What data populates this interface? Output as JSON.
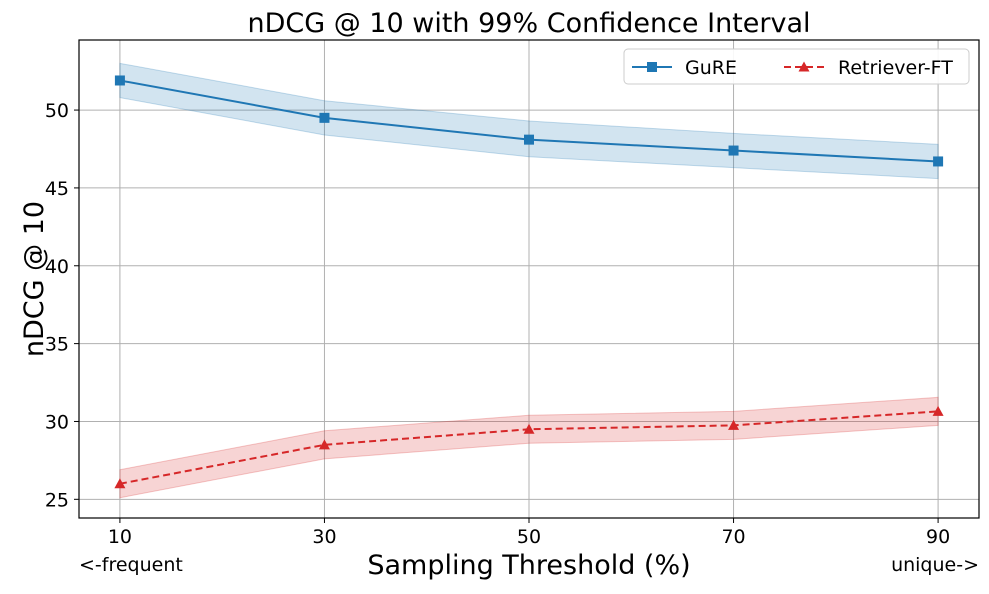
{
  "chart_data": {
    "type": "line",
    "title": "nDCG @ 10 with 99% Confidence Interval",
    "xlabel": "Sampling Threshold (%)",
    "ylabel": "nDCG @ 10",
    "x": [
      10,
      30,
      50,
      70,
      90
    ],
    "xticks": [
      "10",
      "30",
      "50",
      "70",
      "90"
    ],
    "yticks": [
      "25",
      "30",
      "35",
      "40",
      "45",
      "50"
    ],
    "xlim": [
      6,
      94
    ],
    "ylim": [
      23.8,
      54.5
    ],
    "grid": true,
    "legend_position": "top-right",
    "annotations": {
      "left": "<-frequent",
      "right": "unique->"
    },
    "series": [
      {
        "name": "GuRE",
        "values": [
          51.9,
          49.5,
          48.1,
          47.4,
          46.7
        ],
        "ci_lower": [
          50.8,
          48.4,
          47.0,
          46.3,
          45.6
        ],
        "ci_upper": [
          53.0,
          50.6,
          49.3,
          48.5,
          47.8
        ],
        "color": "#1f77b4",
        "band_color": "#1f77b4",
        "marker": "square",
        "line_style": "solid"
      },
      {
        "name": "Retriever-FT",
        "values": [
          26.0,
          28.5,
          29.5,
          29.75,
          30.65
        ],
        "ci_lower": [
          25.1,
          27.6,
          28.6,
          28.85,
          29.75
        ],
        "ci_upper": [
          26.9,
          29.4,
          30.4,
          30.65,
          31.55
        ],
        "color": "#d62728",
        "band_color": "#d62728",
        "marker": "triangle",
        "line_style": "dashed"
      }
    ]
  }
}
